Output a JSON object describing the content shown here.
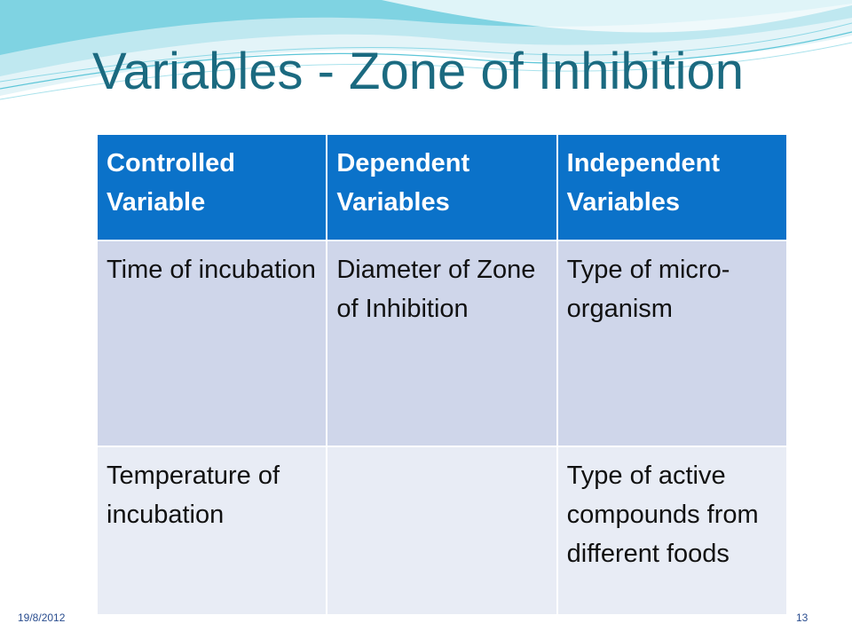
{
  "slide": {
    "title": "Variables - Zone of Inhibition",
    "footer": {
      "date": "19/8/2012",
      "page_number": "13"
    }
  },
  "table": {
    "headers": [
      {
        "line1": "Controlled",
        "line2": "Variable"
      },
      {
        "line1": "Dependent",
        "line2": "Variables"
      },
      {
        "line1": "Independent",
        "line2": "Variables"
      }
    ],
    "rows": [
      [
        "Time of incubation",
        "Diameter of Zone of Inhibition",
        "Type of micro-organism"
      ],
      [
        "Temperature of incubation",
        "",
        "Type of active compounds from different foods"
      ]
    ]
  },
  "colors": {
    "title": "#1b6a80",
    "header_bg": "#0b72c9",
    "row1_bg": "#cfd6ea",
    "row2_bg": "#e8ecf5",
    "wave_primary": "#5ec6d8",
    "wave_light": "#bfe8f0"
  }
}
